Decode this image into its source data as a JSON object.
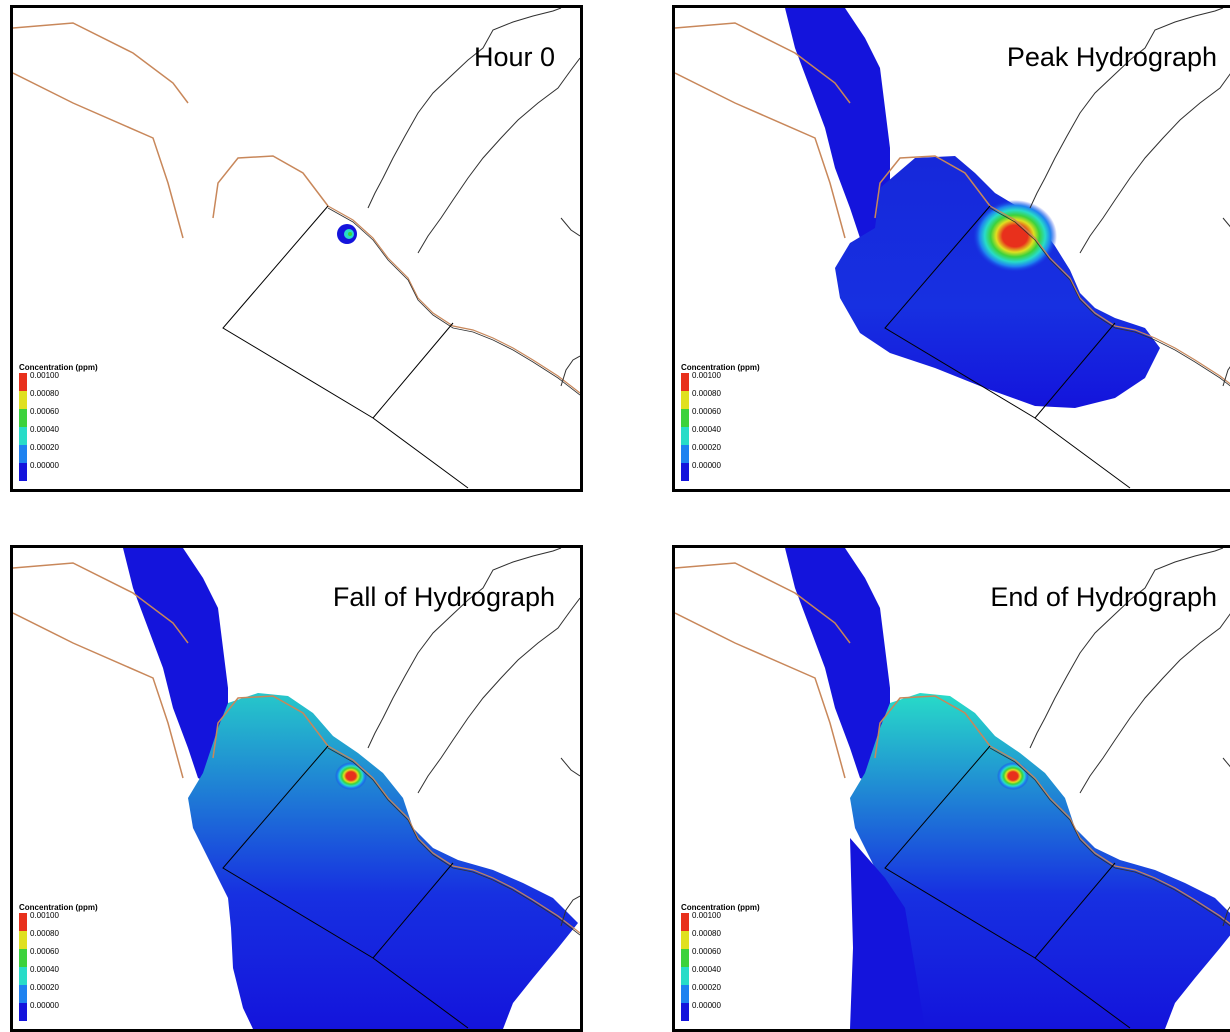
{
  "panels": [
    {
      "title": "Hour 0",
      "plume_level": 0.0,
      "lowland_level": 0.0,
      "hotspot": "small"
    },
    {
      "title": "Peak Hydrograph",
      "plume_level": 0.05,
      "lowland_level": 0.1,
      "hotspot": "large"
    },
    {
      "title": "Fall of Hydrograph",
      "plume_level": 0.45,
      "lowland_level": 0.08,
      "hotspot": "medium"
    },
    {
      "title": "End of Hydrograph",
      "plume_level": 0.5,
      "lowland_level": 0.1,
      "hotspot": "medium"
    }
  ],
  "legend": {
    "title": "Concentration (ppm)",
    "entries": [
      {
        "label": "0.00100",
        "color": "#e8301c"
      },
      {
        "label": "0.00080",
        "color": "#e0e020"
      },
      {
        "label": "0.00060",
        "color": "#3cd23c"
      },
      {
        "label": "0.00040",
        "color": "#28dcc8"
      },
      {
        "label": "0.00020",
        "color": "#1e82f0"
      },
      {
        "label": "0.00000",
        "color": "#1414dc"
      }
    ]
  },
  "colors": {
    "road": "#c8875a",
    "stream": "#303030",
    "boundary": "#000000",
    "low": "#1414dc"
  }
}
